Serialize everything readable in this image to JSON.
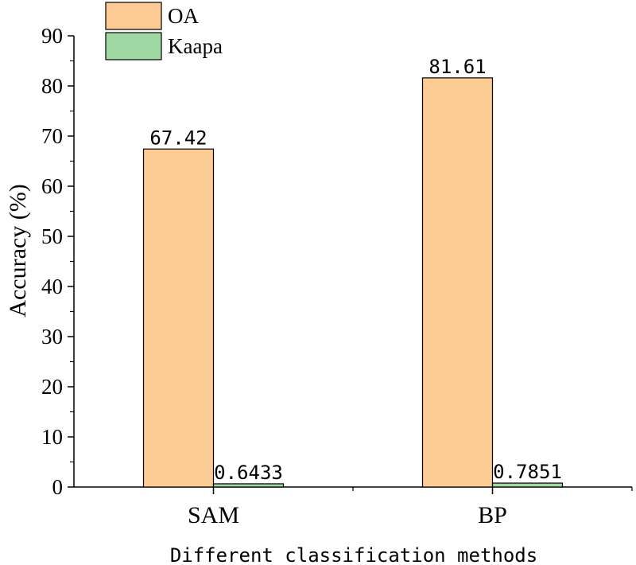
{
  "chart_data": {
    "type": "bar",
    "categories": [
      "SAM",
      "BP"
    ],
    "series": [
      {
        "name": "OA",
        "values": [
          67.42,
          81.61
        ],
        "labels": [
          "67.42",
          "81.61"
        ],
        "color": "#FDCB94"
      },
      {
        "name": "Kaapa",
        "values": [
          0.6433,
          0.7851
        ],
        "labels": [
          "0.6433",
          "0.7851"
        ],
        "color": "#9FD8A2"
      }
    ],
    "title": "",
    "xlabel": "Different classification methods",
    "ylabel": "Accuracy (%)",
    "ylim": [
      0,
      90
    ],
    "yticks": [
      0,
      10,
      20,
      30,
      40,
      50,
      60,
      70,
      80,
      90
    ],
    "grid": false,
    "legend_position": "top-left"
  }
}
